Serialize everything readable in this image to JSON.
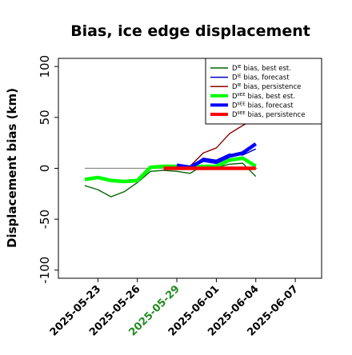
{
  "chart_data": {
    "type": "line",
    "title": "Bias, ice edge displacement",
    "xlabel": "",
    "ylabel": "Displacement bias (km)",
    "xlim": [
      "2025-05-20",
      "2025-06-09"
    ],
    "ylim": [
      -108,
      108
    ],
    "yticks": [
      -100,
      -50,
      0,
      50,
      100
    ],
    "xticks": [
      "2025-05-23",
      "2025-05-26",
      "2025-05-29",
      "2025-06-01",
      "2025-06-04",
      "2025-06-07"
    ],
    "highlight_tick": "2025-05-29",
    "reference_line": 0,
    "legend_position": "top-right",
    "series": [
      {
        "name": "DIE bias, best est.",
        "sup": "IE",
        "color": "#006400",
        "width": 1.4,
        "x": [
          "2025-05-22",
          "2025-05-23",
          "2025-05-24",
          "2025-05-25",
          "2025-05-26",
          "2025-05-27",
          "2025-05-28",
          "2025-05-29",
          "2025-05-30",
          "2025-05-31",
          "2025-06-01",
          "2025-06-02",
          "2025-06-03",
          "2025-06-04"
        ],
        "y": [
          -17,
          -21,
          -28,
          -23,
          -14,
          -3,
          -2,
          -3,
          -5,
          3,
          1,
          4,
          5,
          -8
        ]
      },
      {
        "name": "DIE bias, forecast",
        "sup": "IE",
        "color": "#0000cd",
        "width": 1.4,
        "x": [
          "2025-05-29",
          "2025-05-30",
          "2025-05-31",
          "2025-06-01",
          "2025-06-02",
          "2025-06-03",
          "2025-06-04"
        ],
        "y": [
          3,
          1,
          10,
          8,
          14,
          13,
          19
        ]
      },
      {
        "name": "DIE bias, persistence",
        "sup": "IE",
        "color": "#8b0000",
        "width": 1.4,
        "x": [
          "2025-05-28",
          "2025-05-29",
          "2025-05-30",
          "2025-05-31",
          "2025-06-01",
          "2025-06-02",
          "2025-06-03",
          "2025-06-04"
        ],
        "y": [
          0,
          -1,
          2,
          15,
          20,
          34,
          42,
          49
        ]
      },
      {
        "name": "DIIEE bias, best est.",
        "sup": "IIEE",
        "color": "#00ff00",
        "width": 4.5,
        "x": [
          "2025-05-22",
          "2025-05-23",
          "2025-05-24",
          "2025-05-25",
          "2025-05-26",
          "2025-05-27",
          "2025-05-28",
          "2025-05-29",
          "2025-05-30",
          "2025-05-31",
          "2025-06-01",
          "2025-06-02",
          "2025-06-03",
          "2025-06-04"
        ],
        "y": [
          -11,
          -9,
          -12,
          -13,
          -12,
          1,
          2,
          2,
          1,
          2,
          2,
          8,
          10,
          2
        ]
      },
      {
        "name": "DIIEE bias, forecast",
        "sup": "IIEE",
        "color": "#0000ff",
        "width": 4.5,
        "x": [
          "2025-05-29",
          "2025-05-30",
          "2025-05-31",
          "2025-06-01",
          "2025-06-02",
          "2025-06-03",
          "2025-06-04"
        ],
        "y": [
          3,
          1,
          8,
          6,
          12,
          15,
          24
        ]
      },
      {
        "name": "DIIEE bias, persistence",
        "sup": "IIEE",
        "color": "#ff0000",
        "width": 4.5,
        "x": [
          "2025-05-28",
          "2025-05-29",
          "2025-05-30",
          "2025-05-31",
          "2025-06-01",
          "2025-06-02",
          "2025-06-03",
          "2025-06-04"
        ],
        "y": [
          0,
          0,
          0,
          0,
          0,
          0,
          0,
          0
        ]
      }
    ]
  }
}
